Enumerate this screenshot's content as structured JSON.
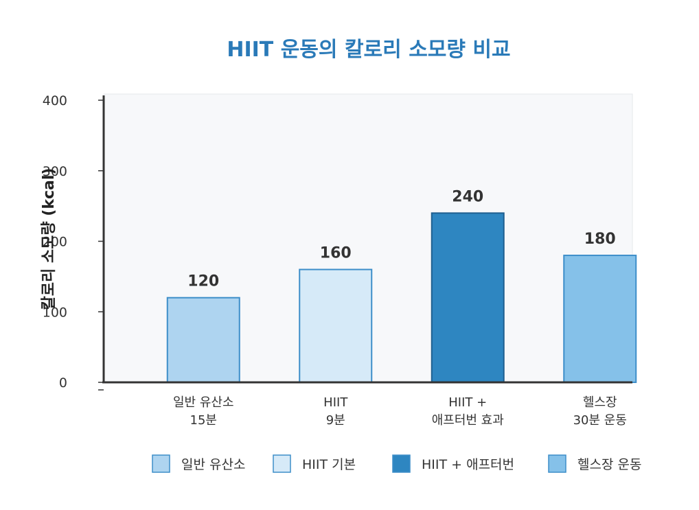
{
  "chart_data": {
    "type": "bar",
    "title": "HIIT 운동의 칼로리 소모량 비교",
    "xlabel": "",
    "ylabel": "칼로리 소모량 (kcal)",
    "ylim": [
      0,
      400
    ],
    "yticks": [
      0,
      100,
      200,
      300,
      400
    ],
    "grid": false,
    "legend_position": "bottom",
    "categories": [
      [
        "일반 유산소",
        "15분"
      ],
      [
        "HIIT",
        "9분"
      ],
      [
        "HIIT +",
        "애프터번 효과"
      ],
      [
        "헬스장",
        "30분 운동"
      ]
    ],
    "values": [
      120,
      160,
      240,
      180
    ],
    "bar_colors": [
      "#aed4f0",
      "#d6eaf8",
      "#2e86c1",
      "#85c1e9"
    ],
    "bar_strokes": [
      "#3d8ec9",
      "#3d8ec9",
      "#1f5f8f",
      "#3d8ec9"
    ],
    "legend": [
      {
        "label": "일반 유산소",
        "color": "#aed4f0"
      },
      {
        "label": "HIIT 기본",
        "color": "#d6eaf8"
      },
      {
        "label": "HIIT + 애프터번",
        "color": "#2e86c1"
      },
      {
        "label": "헬스장 운동",
        "color": "#85c1e9"
      }
    ]
  }
}
